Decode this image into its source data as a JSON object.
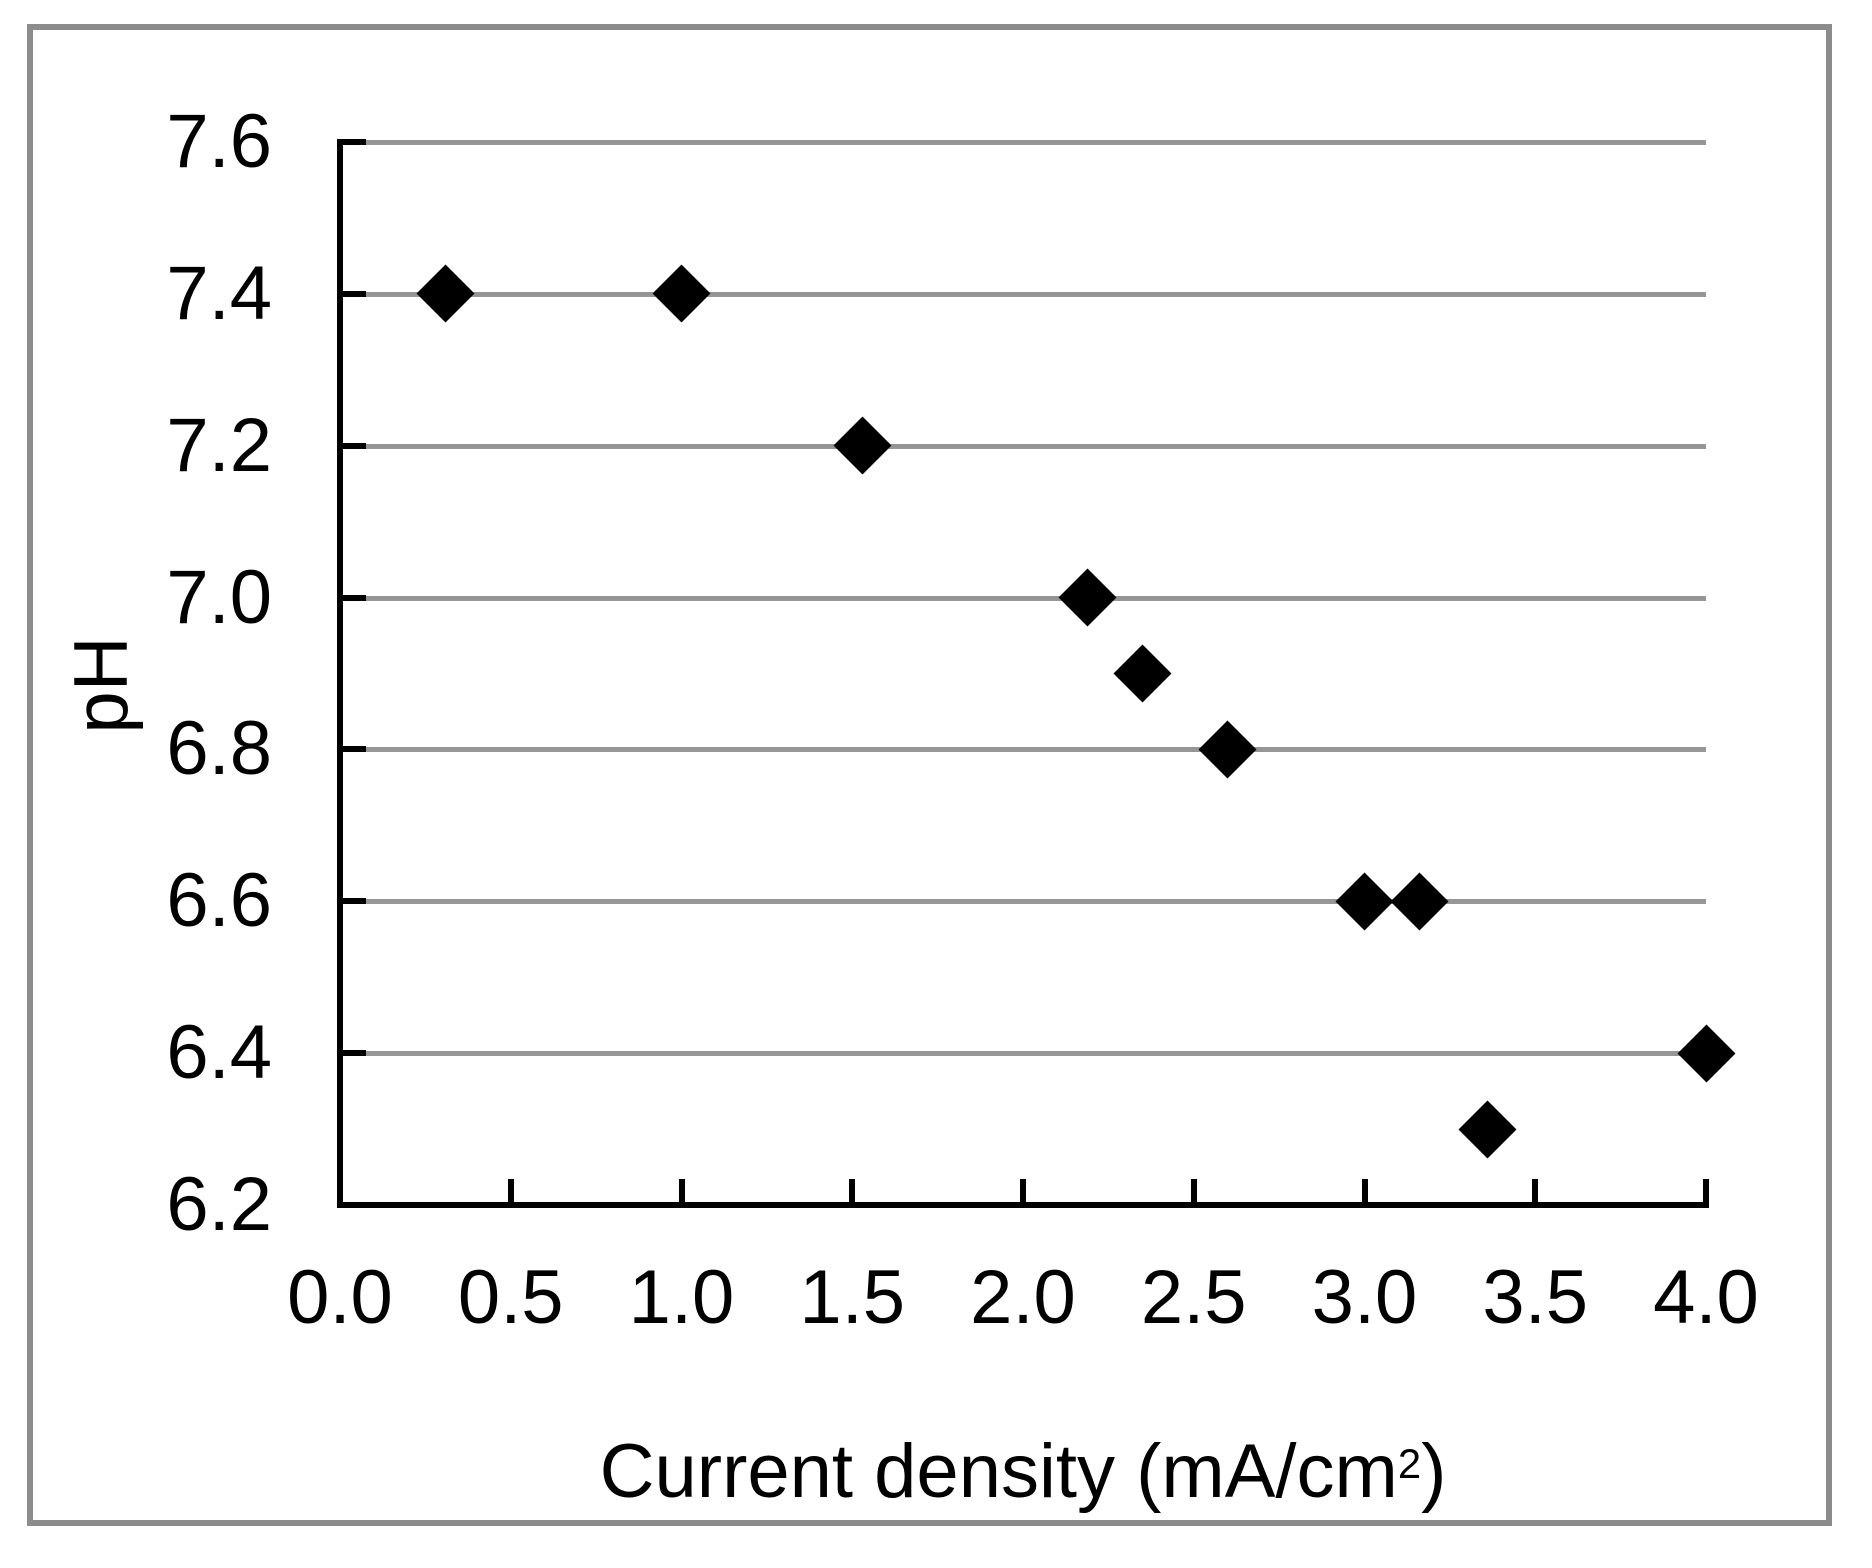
{
  "chart_data": {
    "type": "scatter",
    "title": "",
    "xlabel": {
      "text": "Current density (mA/cm²)",
      "base": "Current density (mA/cm",
      "sup": "2",
      "end": ")"
    },
    "ylabel": "pH",
    "xlim": [
      0.0,
      4.0
    ],
    "ylim": [
      6.2,
      7.6
    ],
    "x_ticks": [
      {
        "value": 0.0,
        "label": "0.0"
      },
      {
        "value": 0.5,
        "label": "0.5"
      },
      {
        "value": 1.0,
        "label": "1.0"
      },
      {
        "value": 1.5,
        "label": "1.5"
      },
      {
        "value": 2.0,
        "label": "2.0"
      },
      {
        "value": 2.5,
        "label": "2.5"
      },
      {
        "value": 3.0,
        "label": "3.0"
      },
      {
        "value": 3.5,
        "label": "3.5"
      },
      {
        "value": 4.0,
        "label": "4.0"
      }
    ],
    "y_ticks": [
      {
        "value": 7.6,
        "label": "7.6"
      },
      {
        "value": 7.4,
        "label": "7.4"
      },
      {
        "value": 7.2,
        "label": "7.2"
      },
      {
        "value": 7.0,
        "label": "7.0"
      },
      {
        "value": 6.8,
        "label": "6.8"
      },
      {
        "value": 6.6,
        "label": "6.6"
      },
      {
        "value": 6.4,
        "label": "6.4"
      },
      {
        "value": 6.2,
        "label": "6.2"
      }
    ],
    "grid": "horizontal-only",
    "legend": "none",
    "marker": "diamond",
    "series": [
      {
        "name": "pH",
        "points": [
          {
            "x": 0.31,
            "y": 7.4
          },
          {
            "x": 1.0,
            "y": 7.4
          },
          {
            "x": 1.53,
            "y": 7.2
          },
          {
            "x": 2.19,
            "y": 7.0
          },
          {
            "x": 2.35,
            "y": 6.9
          },
          {
            "x": 2.6,
            "y": 6.8
          },
          {
            "x": 3.0,
            "y": 6.6
          },
          {
            "x": 3.16,
            "y": 6.6
          },
          {
            "x": 3.36,
            "y": 6.3
          },
          {
            "x": 4.0,
            "y": 6.4
          }
        ]
      }
    ],
    "colors": {
      "marker": "#000000",
      "gridline": "#969696",
      "axis": "#000000",
      "frame": "#8c8c8c",
      "background": "#ffffff",
      "text": "#000000"
    }
  }
}
